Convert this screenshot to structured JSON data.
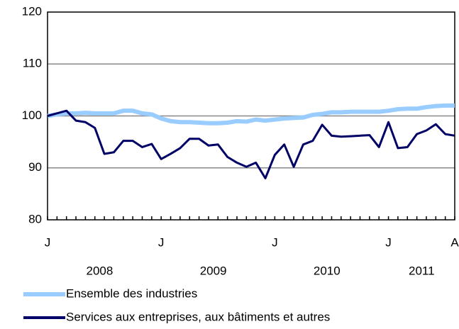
{
  "chart_data": {
    "type": "line",
    "categories": [
      "J",
      null,
      null,
      null,
      null,
      null,
      null,
      null,
      null,
      null,
      null,
      null,
      "J",
      null,
      null,
      null,
      null,
      null,
      null,
      null,
      null,
      null,
      null,
      null,
      "J",
      null,
      null,
      null,
      null,
      null,
      null,
      null,
      null,
      null,
      null,
      null,
      "J",
      null,
      null,
      null,
      null,
      null,
      null,
      "A"
    ],
    "years": [
      "2008",
      "2009",
      "2010",
      "2011"
    ],
    "series": [
      {
        "name": "Ensemble des industries",
        "color": "#99ccff",
        "values": [
          100,
          100.3,
          100.5,
          100.5,
          100.6,
          100.5,
          100.5,
          100.5,
          101,
          101,
          100.5,
          100.3,
          99.5,
          99,
          98.8,
          98.8,
          98.7,
          98.6,
          98.6,
          98.7,
          99,
          98.9,
          99.3,
          99.1,
          99.3,
          99.5,
          99.6,
          99.7,
          100.2,
          100.4,
          100.7,
          100.7,
          100.8,
          100.8,
          100.8,
          100.8,
          101,
          101.3,
          101.4,
          101.4,
          101.7,
          101.9,
          102,
          102
        ]
      },
      {
        "name": "Services aux entreprises, aux bâtiments et autres",
        "color": "#000066",
        "values": [
          100,
          100.5,
          101,
          99.1,
          98.8,
          97.7,
          92.7,
          93,
          95.2,
          95.2,
          94,
          94.6,
          91.7,
          92.7,
          93.8,
          95.6,
          95.6,
          94.3,
          94.5,
          92.1,
          91,
          90.2,
          91,
          88,
          92.5,
          94.5,
          90.2,
          94.5,
          95.2,
          98.3,
          96.2,
          96,
          96.1,
          96.2,
          96.3,
          94,
          98.8,
          93.8,
          94,
          96.5,
          97.2,
          98.4,
          96.5,
          96.2
        ]
      }
    ],
    "ylim": [
      80,
      120
    ],
    "yticks": [
      80,
      90,
      100,
      110,
      120
    ],
    "grid": true
  }
}
